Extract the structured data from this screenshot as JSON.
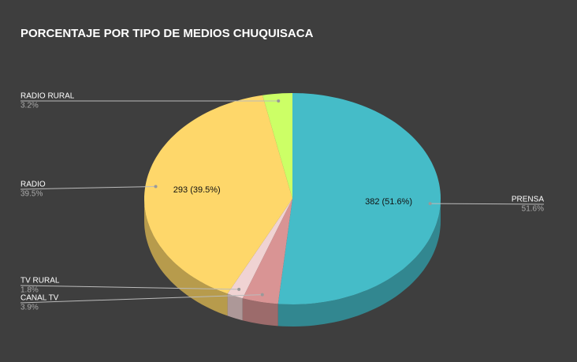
{
  "chart_data": {
    "type": "pie3d",
    "title": "PORCENTAJE POR TIPO DE MEDIOS CHUQUISACA",
    "categories": [
      "PRENSA",
      "CANAL TV",
      "TV RURAL",
      "RADIO",
      "RADIO RURAL"
    ],
    "values": [
      382,
      29,
      13,
      293,
      24
    ],
    "value_labels": [
      "382 (51.6%)",
      null,
      null,
      "293 (39.5%)",
      null
    ],
    "percent_labels": [
      "51.6%",
      "3.9%",
      "1.8%",
      "39.5%",
      "3.2%"
    ],
    "colors": [
      "#45bcc8",
      "#d99494",
      "#f0d3d3",
      "#fed76a",
      "#ccff66"
    ]
  }
}
